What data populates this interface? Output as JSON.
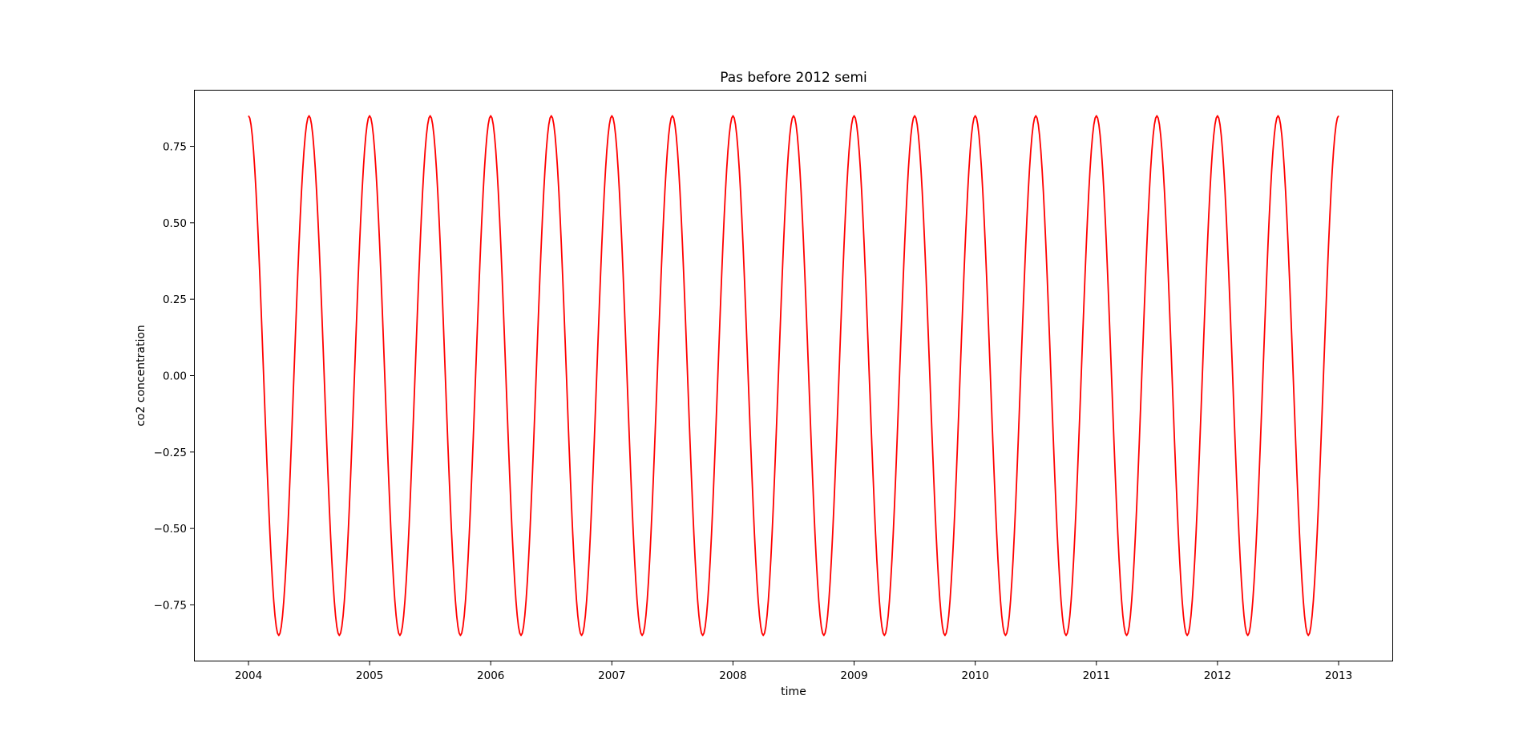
{
  "chart_data": {
    "type": "line",
    "title": "Pas before 2012 semi",
    "xlabel": "time",
    "ylabel": "co2 concentration",
    "xlim": [
      2003.55,
      2013.45
    ],
    "ylim": [
      -0.935,
      0.935
    ],
    "x_ticks": [
      {
        "value": 2004,
        "label": "2004"
      },
      {
        "value": 2005,
        "label": "2005"
      },
      {
        "value": 2006,
        "label": "2006"
      },
      {
        "value": 2007,
        "label": "2007"
      },
      {
        "value": 2008,
        "label": "2008"
      },
      {
        "value": 2009,
        "label": "2009"
      },
      {
        "value": 2010,
        "label": "2010"
      },
      {
        "value": 2011,
        "label": "2011"
      },
      {
        "value": 2012,
        "label": "2012"
      },
      {
        "value": 2013,
        "label": "2013"
      }
    ],
    "y_ticks": [
      {
        "value": 0.75,
        "label": "0.75"
      },
      {
        "value": 0.5,
        "label": "0.50"
      },
      {
        "value": 0.25,
        "label": "0.25"
      },
      {
        "value": 0.0,
        "label": "0.00"
      },
      {
        "value": -0.25,
        "label": "−0.25"
      },
      {
        "value": -0.5,
        "label": "−0.50"
      },
      {
        "value": -0.75,
        "label": "−0.75"
      }
    ],
    "grid": false,
    "legend": "none",
    "series": [
      {
        "color": "#ff0000",
        "x": [
          2004.0,
          2004.25,
          2004.5,
          2004.75,
          2005.0,
          2005.25,
          2005.5,
          2005.75,
          2006.0,
          2006.25,
          2006.5,
          2006.75,
          2007.0,
          2007.25,
          2007.5,
          2007.75,
          2008.0,
          2008.25,
          2008.5,
          2008.75,
          2009.0,
          2009.25,
          2009.5,
          2009.75,
          2010.0,
          2010.25,
          2010.5,
          2010.75,
          2011.0,
          2011.25,
          2011.5,
          2011.75,
          2012.0,
          2012.25,
          2012.5,
          2012.75,
          2013.0
        ],
        "values": [
          0.85,
          -0.85,
          0.85,
          -0.85,
          0.85,
          -0.85,
          0.85,
          -0.85,
          0.85,
          -0.85,
          0.85,
          -0.85,
          0.85,
          -0.85,
          0.85,
          -0.85,
          0.85,
          -0.85,
          0.85,
          -0.85,
          0.85,
          -0.85,
          0.85,
          -0.85,
          0.85,
          -0.85,
          0.85,
          -0.85,
          0.85,
          -0.85,
          0.85,
          -0.85,
          0.85,
          -0.85,
          0.85,
          -0.85,
          0.85
        ]
      }
    ]
  }
}
